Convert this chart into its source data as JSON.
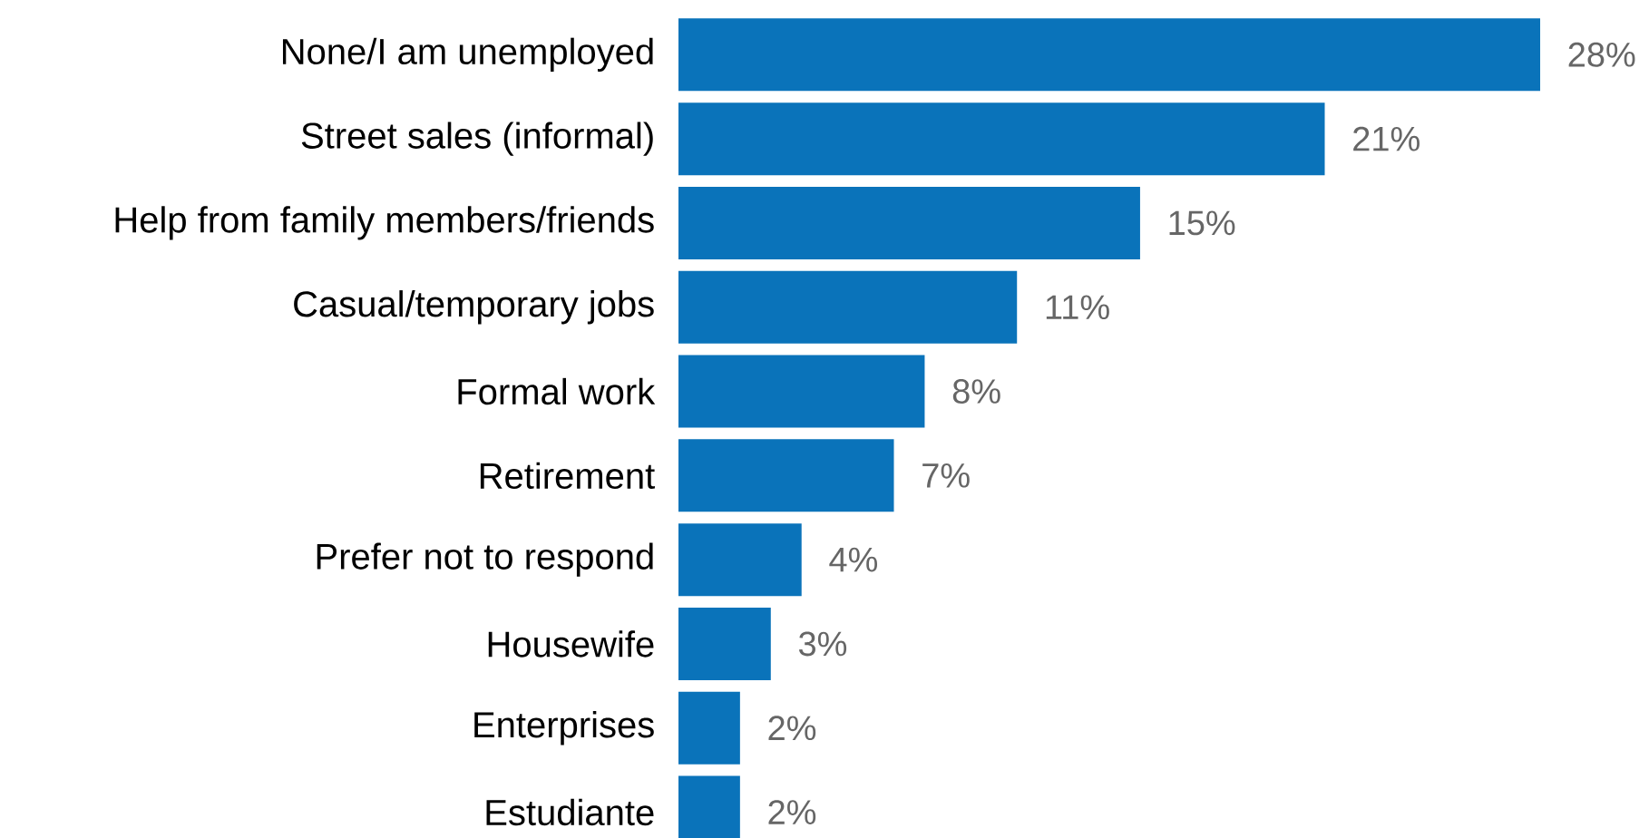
{
  "chart_data": {
    "type": "bar",
    "orientation": "horizontal",
    "color": "#0a73ba",
    "categories": [
      "None/I am unemployed",
      "Street sales (informal)",
      "Help from family members/friends",
      "Casual/temporary jobs",
      "Formal work",
      "Retirement",
      "Prefer not to respond",
      "Housewife",
      "Enterprises",
      "Estudiante"
    ],
    "values": [
      28,
      21,
      15,
      11,
      8,
      7,
      4,
      3,
      2,
      2
    ],
    "value_labels": [
      "28%",
      "21%",
      "15%",
      "11%",
      "8%",
      "7%",
      "4%",
      "3%",
      "2%",
      "2%"
    ]
  }
}
